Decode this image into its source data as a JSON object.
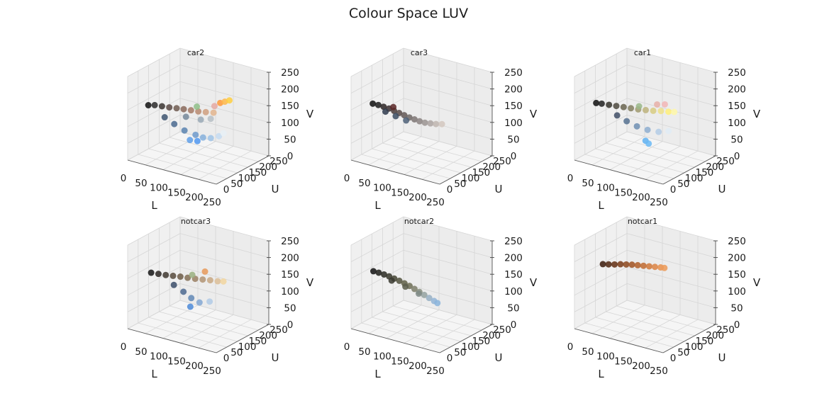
{
  "figure": {
    "title": "Colour Space LUV"
  },
  "chart_data": [
    {
      "type": "scatter",
      "title": "car2",
      "xlabel": "L",
      "ylabel": "U",
      "zlabel": "V",
      "xlim": [
        0,
        250
      ],
      "ylim": [
        0,
        250
      ],
      "zlim": [
        0,
        250
      ],
      "xticks": [
        "0",
        "50",
        "100",
        "150",
        "200",
        "250"
      ],
      "yticks": [
        "0",
        "50",
        "100",
        "150",
        "200",
        "250"
      ],
      "zticks": [
        "0",
        "50",
        "100",
        "150",
        "200",
        "250"
      ],
      "grid": true,
      "series": [
        {
          "points": [
            {
              "L": 5,
              "U": 90,
              "V": 135,
              "color": "#111111"
            },
            {
              "L": 20,
              "U": 95,
              "V": 138,
              "color": "#2a2a2a"
            },
            {
              "L": 40,
              "U": 96,
              "V": 140,
              "color": "#3a3430"
            },
            {
              "L": 60,
              "U": 97,
              "V": 142,
              "color": "#5a4a44"
            },
            {
              "L": 80,
              "U": 98,
              "V": 145,
              "color": "#6e5a50"
            },
            {
              "L": 100,
              "U": 98,
              "V": 148,
              "color": "#8a6a5c"
            },
            {
              "L": 120,
              "U": 99,
              "V": 150,
              "color": "#a57a66"
            },
            {
              "L": 140,
              "U": 100,
              "V": 152,
              "color": "#b88a70"
            },
            {
              "L": 160,
              "U": 102,
              "V": 155,
              "color": "#d0a080"
            },
            {
              "L": 180,
              "U": 105,
              "V": 158,
              "color": "#e3b58e"
            },
            {
              "L": 190,
              "U": 120,
              "V": 185,
              "color": "#ff9a3a"
            },
            {
              "L": 200,
              "U": 125,
              "V": 190,
              "color": "#ffb84a"
            },
            {
              "L": 210,
              "U": 130,
              "V": 195,
              "color": "#ffcf40"
            },
            {
              "L": 60,
              "U": 75,
              "V": 120,
              "color": "#3d5470"
            },
            {
              "L": 90,
              "U": 70,
              "V": 110,
              "color": "#4a6a8f"
            },
            {
              "L": 120,
              "U": 68,
              "V": 100,
              "color": "#5b84b0"
            },
            {
              "L": 150,
              "U": 70,
              "V": 95,
              "color": "#6e9acb"
            },
            {
              "L": 170,
              "U": 72,
              "V": 92,
              "color": "#86b0dc"
            },
            {
              "L": 190,
              "U": 75,
              "V": 95,
              "color": "#a0c4e8"
            },
            {
              "L": 210,
              "U": 80,
              "V": 105,
              "color": "#c6dcf2"
            },
            {
              "L": 220,
              "U": 85,
              "V": 115,
              "color": "#e8f0f6"
            },
            {
              "L": 140,
              "U": 60,
              "V": 80,
              "color": "#5f9fe8"
            },
            {
              "L": 160,
              "U": 62,
              "V": 82,
              "color": "#4f97f0"
            },
            {
              "L": 110,
              "U": 92,
              "V": 130,
              "color": "#76889a"
            },
            {
              "L": 150,
              "U": 95,
              "V": 132,
              "color": "#9aa9b6"
            },
            {
              "L": 175,
              "U": 100,
              "V": 140,
              "color": "#b7c0c6"
            },
            {
              "L": 130,
              "U": 110,
              "V": 160,
              "color": "#8fbf88"
            },
            {
              "L": 175,
              "U": 118,
              "V": 172,
              "color": "#e6a9a2"
            }
          ]
        }
      ]
    },
    {
      "type": "scatter",
      "title": "car3",
      "xlabel": "L",
      "ylabel": "U",
      "zlabel": "V",
      "xlim": [
        0,
        250
      ],
      "ylim": [
        0,
        250
      ],
      "zlim": [
        0,
        250
      ],
      "xticks": [
        "0",
        "50",
        "100",
        "150",
        "200",
        "250"
      ],
      "yticks": [
        "0",
        "50",
        "100",
        "150",
        "200",
        "250"
      ],
      "zticks": [
        "0",
        "50",
        "100",
        "150",
        "200",
        "250"
      ],
      "grid": true,
      "series": [
        {
          "points": [
            {
              "L": 5,
              "U": 95,
              "V": 138,
              "color": "#0f0f0f"
            },
            {
              "L": 20,
              "U": 96,
              "V": 138,
              "color": "#1c1c1c"
            },
            {
              "L": 35,
              "U": 96,
              "V": 137,
              "color": "#2c2424"
            },
            {
              "L": 50,
              "U": 96,
              "V": 136,
              "color": "#3b2f30"
            },
            {
              "L": 65,
              "U": 95,
              "V": 134,
              "color": "#4a3c3a"
            },
            {
              "L": 80,
              "U": 94,
              "V": 132,
              "color": "#574a48"
            },
            {
              "L": 95,
              "U": 93,
              "V": 130,
              "color": "#635856"
            },
            {
              "L": 110,
              "U": 92,
              "V": 128,
              "color": "#706866"
            },
            {
              "L": 125,
              "U": 91,
              "V": 127,
              "color": "#7e7674"
            },
            {
              "L": 140,
              "U": 90,
              "V": 126,
              "color": "#8c8482"
            },
            {
              "L": 155,
              "U": 90,
              "V": 126,
              "color": "#9b9492"
            },
            {
              "L": 170,
              "U": 91,
              "V": 128,
              "color": "#ada5a2"
            },
            {
              "L": 185,
              "U": 92,
              "V": 130,
              "color": "#c0b6b0"
            },
            {
              "L": 200,
              "U": 95,
              "V": 133,
              "color": "#d4c8c0"
            },
            {
              "L": 45,
              "U": 88,
              "V": 128,
              "color": "#2f3b4d"
            },
            {
              "L": 75,
              "U": 86,
              "V": 124,
              "color": "#3c4d63"
            },
            {
              "L": 105,
              "U": 85,
              "V": 120,
              "color": "#4e6078"
            },
            {
              "L": 60,
              "U": 100,
              "V": 142,
              "color": "#5a2626"
            }
          ]
        }
      ]
    },
    {
      "type": "scatter",
      "title": "car1",
      "xlabel": "L",
      "ylabel": "U",
      "zlabel": "V",
      "xlim": [
        0,
        250
      ],
      "ylim": [
        0,
        250
      ],
      "zlim": [
        0,
        250
      ],
      "xticks": [
        "0",
        "50",
        "100",
        "150",
        "200",
        "250"
      ],
      "yticks": [
        "0",
        "50",
        "100",
        "150",
        "200",
        "250"
      ],
      "zticks": [
        "0",
        "50",
        "100",
        "150",
        "200",
        "250"
      ],
      "grid": true,
      "series": [
        {
          "points": [
            {
              "L": 5,
              "U": 95,
              "V": 140,
              "color": "#0f0f0f"
            },
            {
              "L": 20,
              "U": 96,
              "V": 142,
              "color": "#202020"
            },
            {
              "L": 40,
              "U": 97,
              "V": 144,
              "color": "#35322c"
            },
            {
              "L": 60,
              "U": 98,
              "V": 146,
              "color": "#4d4a40"
            },
            {
              "L": 80,
              "U": 99,
              "V": 148,
              "color": "#68644f"
            },
            {
              "L": 100,
              "U": 100,
              "V": 150,
              "color": "#847f60"
            },
            {
              "L": 120,
              "U": 101,
              "V": 152,
              "color": "#a09a70"
            },
            {
              "L": 140,
              "U": 103,
              "V": 155,
              "color": "#bdb37c"
            },
            {
              "L": 160,
              "U": 105,
              "V": 158,
              "color": "#d8cc82"
            },
            {
              "L": 180,
              "U": 108,
              "V": 162,
              "color": "#efe088"
            },
            {
              "L": 200,
              "U": 110,
              "V": 165,
              "color": "#fff07a"
            },
            {
              "L": 215,
              "U": 112,
              "V": 168,
              "color": "#fff8a8"
            },
            {
              "L": 70,
              "U": 85,
              "V": 125,
              "color": "#3f4e66"
            },
            {
              "L": 100,
              "U": 80,
              "V": 118,
              "color": "#567191"
            },
            {
              "L": 130,
              "U": 78,
              "V": 112,
              "color": "#6e8fb3"
            },
            {
              "L": 160,
              "U": 78,
              "V": 110,
              "color": "#8eaed0"
            },
            {
              "L": 190,
              "U": 80,
              "V": 112,
              "color": "#b4cde6"
            },
            {
              "L": 215,
              "U": 85,
              "V": 120,
              "color": "#e0ecf6"
            },
            {
              "L": 165,
              "U": 60,
              "V": 85,
              "color": "#5fb0f0"
            },
            {
              "L": 175,
              "U": 58,
              "V": 80,
              "color": "#6ab8f4"
            },
            {
              "L": 120,
              "U": 105,
              "V": 160,
              "color": "#9ab88a"
            },
            {
              "L": 165,
              "U": 115,
              "V": 175,
              "color": "#e8b0a8"
            },
            {
              "L": 185,
              "U": 118,
              "V": 180,
              "color": "#f2b6b6"
            }
          ]
        }
      ]
    },
    {
      "type": "scatter",
      "title": "notcar3",
      "xlabel": "L",
      "ylabel": "U",
      "zlabel": "V",
      "xlim": [
        0,
        250
      ],
      "ylim": [
        0,
        250
      ],
      "zlim": [
        0,
        250
      ],
      "xticks": [
        "0",
        "50",
        "100",
        "150",
        "200",
        "250"
      ],
      "yticks": [
        "0",
        "50",
        "100",
        "150",
        "200",
        "250"
      ],
      "zticks": [
        "0",
        "50",
        "100",
        "150",
        "200",
        "250"
      ],
      "grid": true,
      "series": [
        {
          "points": [
            {
              "L": 10,
              "U": 95,
              "V": 138,
              "color": "#141414"
            },
            {
              "L": 30,
              "U": 96,
              "V": 140,
              "color": "#2a2622"
            },
            {
              "L": 50,
              "U": 97,
              "V": 142,
              "color": "#403830"
            },
            {
              "L": 70,
              "U": 98,
              "V": 145,
              "color": "#574a3c"
            },
            {
              "L": 90,
              "U": 99,
              "V": 148,
              "color": "#6d5c48"
            },
            {
              "L": 110,
              "U": 100,
              "V": 150,
              "color": "#836e56"
            },
            {
              "L": 130,
              "U": 102,
              "V": 152,
              "color": "#9a8064"
            },
            {
              "L": 150,
              "U": 104,
              "V": 155,
              "color": "#b29474"
            },
            {
              "L": 170,
              "U": 106,
              "V": 158,
              "color": "#c8a884"
            },
            {
              "L": 190,
              "U": 108,
              "V": 160,
              "color": "#dcbe98"
            },
            {
              "L": 205,
              "U": 110,
              "V": 163,
              "color": "#f2d6a0"
            },
            {
              "L": 150,
              "U": 115,
              "V": 175,
              "color": "#e89a5a"
            },
            {
              "L": 80,
              "U": 85,
              "V": 125,
              "color": "#3b4e6a"
            },
            {
              "L": 110,
              "U": 80,
              "V": 115,
              "color": "#4d6a90"
            },
            {
              "L": 135,
              "U": 75,
              "V": 105,
              "color": "#6288b6"
            },
            {
              "L": 160,
              "U": 72,
              "V": 100,
              "color": "#84a8d4"
            },
            {
              "L": 185,
              "U": 78,
              "V": 108,
              "color": "#b2cbe6"
            },
            {
              "L": 140,
              "U": 62,
              "V": 85,
              "color": "#4c8ad8"
            },
            {
              "L": 120,
              "U": 105,
              "V": 160,
              "color": "#9ab080"
            }
          ]
        }
      ]
    },
    {
      "type": "scatter",
      "title": "notcar2",
      "xlabel": "L",
      "ylabel": "U",
      "zlabel": "V",
      "xlim": [
        0,
        250
      ],
      "ylim": [
        0,
        250
      ],
      "zlim": [
        0,
        250
      ],
      "xticks": [
        "0",
        "50",
        "100",
        "150",
        "200",
        "250"
      ],
      "yticks": [
        "0",
        "50",
        "100",
        "150",
        "200",
        "250"
      ],
      "zticks": [
        "0",
        "50",
        "100",
        "150",
        "200",
        "250"
      ],
      "grid": true,
      "series": [
        {
          "points": [
            {
              "L": 5,
              "U": 98,
              "V": 140,
              "color": "#121212"
            },
            {
              "L": 20,
              "U": 98,
              "V": 140,
              "color": "#1e1e1a"
            },
            {
              "L": 35,
              "U": 98,
              "V": 139,
              "color": "#2a2a22"
            },
            {
              "L": 50,
              "U": 97,
              "V": 138,
              "color": "#36362a"
            },
            {
              "L": 65,
              "U": 96,
              "V": 136,
              "color": "#444434"
            },
            {
              "L": 80,
              "U": 95,
              "V": 134,
              "color": "#52523e"
            },
            {
              "L": 95,
              "U": 94,
              "V": 131,
              "color": "#606048"
            },
            {
              "L": 110,
              "U": 93,
              "V": 128,
              "color": "#6e6e56"
            },
            {
              "L": 125,
              "U": 91,
              "V": 124,
              "color": "#7c7e6a"
            },
            {
              "L": 140,
              "U": 89,
              "V": 120,
              "color": "#8a9080"
            },
            {
              "L": 155,
              "U": 87,
              "V": 116,
              "color": "#94a2a0"
            },
            {
              "L": 170,
              "U": 85,
              "V": 112,
              "color": "#98b0c4"
            },
            {
              "L": 185,
              "U": 83,
              "V": 108,
              "color": "#92b4d6"
            },
            {
              "L": 195,
              "U": 82,
              "V": 105,
              "color": "#8ab4dc"
            },
            {
              "L": 60,
              "U": 92,
              "V": 130,
              "color": "#3a3a30"
            },
            {
              "L": 100,
              "U": 90,
              "V": 124,
              "color": "#5c5e4c"
            },
            {
              "L": 140,
              "U": 86,
              "V": 116,
              "color": "#7e8a86"
            }
          ]
        }
      ]
    },
    {
      "type": "scatter",
      "title": "notcar1",
      "xlabel": "L",
      "ylabel": "U",
      "zlabel": "V",
      "xlim": [
        0,
        250
      ],
      "ylim": [
        0,
        250
      ],
      "zlim": [
        0,
        250
      ],
      "xticks": [
        "0",
        "50",
        "100",
        "150",
        "200",
        "250"
      ],
      "yticks": [
        "0",
        "50",
        "100",
        "150",
        "200",
        "250"
      ],
      "zticks": [
        "0",
        "50",
        "100",
        "150",
        "200",
        "250"
      ],
      "grid": true,
      "series": [
        {
          "points": [
            {
              "L": 15,
              "U": 110,
              "V": 160,
              "color": "#3a1a0a"
            },
            {
              "L": 30,
              "U": 112,
              "V": 163,
              "color": "#4e240e"
            },
            {
              "L": 45,
              "U": 115,
              "V": 166,
              "color": "#622e12"
            },
            {
              "L": 60,
              "U": 118,
              "V": 170,
              "color": "#783a16"
            },
            {
              "L": 75,
              "U": 120,
              "V": 173,
              "color": "#8c461c"
            },
            {
              "L": 90,
              "U": 122,
              "V": 176,
              "color": "#a05222"
            },
            {
              "L": 105,
              "U": 124,
              "V": 178,
              "color": "#b05e28"
            },
            {
              "L": 120,
              "U": 126,
              "V": 180,
              "color": "#c06a30"
            },
            {
              "L": 135,
              "U": 128,
              "V": 182,
              "color": "#d0783a"
            },
            {
              "L": 150,
              "U": 130,
              "V": 184,
              "color": "#dc8444"
            },
            {
              "L": 165,
              "U": 132,
              "V": 186,
              "color": "#e6904e"
            },
            {
              "L": 175,
              "U": 133,
              "V": 187,
              "color": "#ec9a58"
            }
          ]
        }
      ]
    }
  ]
}
